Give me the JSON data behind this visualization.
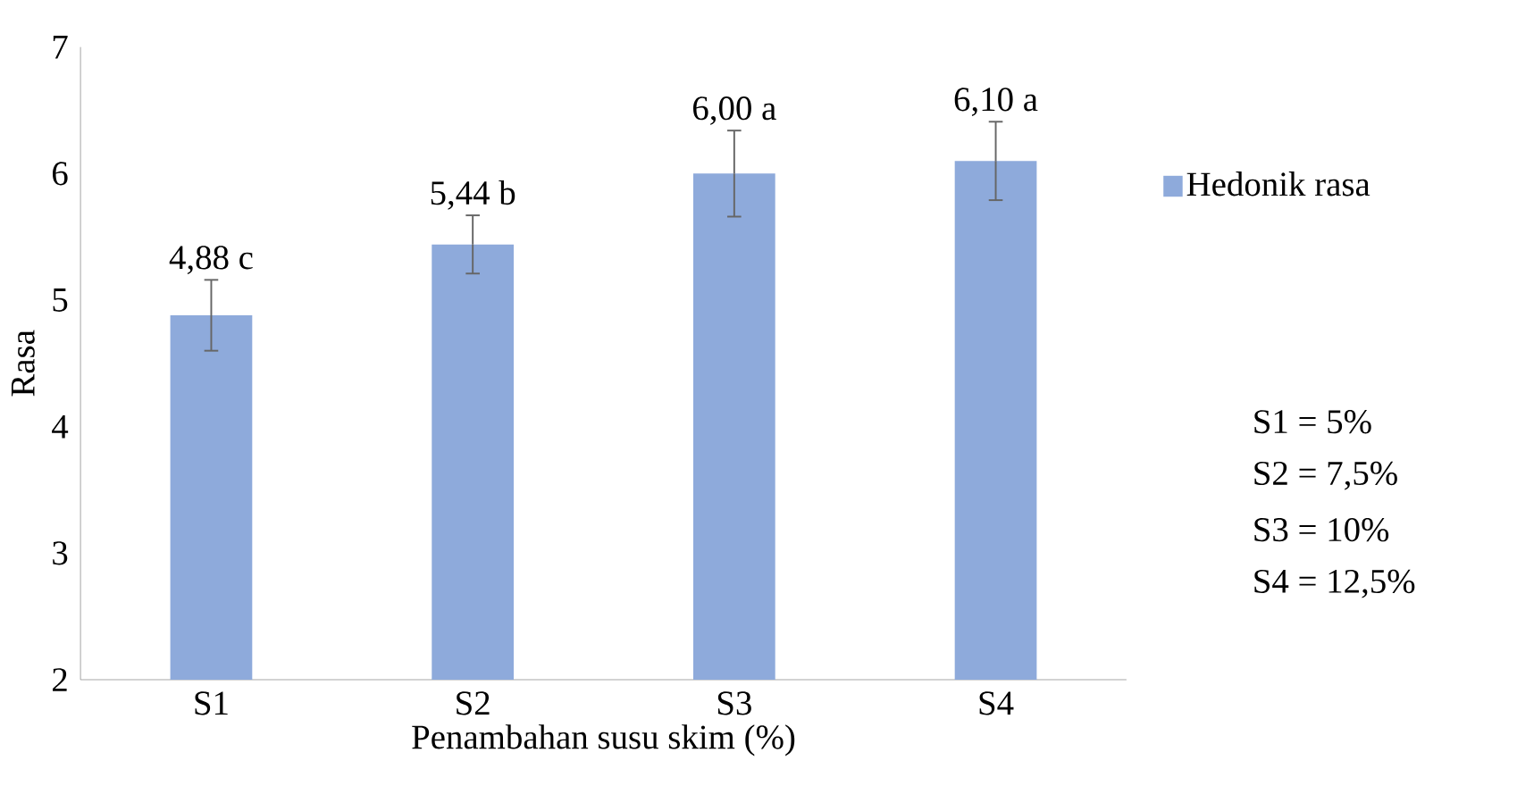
{
  "chart_data": {
    "type": "bar",
    "xlabel": "Penambahan susu skim (%)",
    "ylabel": "Rasa",
    "categories": [
      "S1",
      "S2",
      "S3",
      "S4"
    ],
    "series": [
      {
        "name": "Hedonik rasa",
        "color": "#8eaadb",
        "values": [
          4.88,
          5.44,
          6.0,
          6.1
        ],
        "errors": [
          0.28,
          0.23,
          0.34,
          0.31
        ],
        "value_labels": [
          "4,88 c",
          "5,44 b",
          "6,00 a",
          "6,10 a"
        ]
      }
    ],
    "ylim": [
      2,
      7
    ],
    "yticks": [
      2,
      3,
      4,
      5,
      6,
      7
    ],
    "grid": false,
    "legend": "right",
    "annotations": [
      "S1 = 5%",
      "S2 = 7,5%",
      "S3 = 10%",
      "S4 = 12,5%"
    ]
  }
}
